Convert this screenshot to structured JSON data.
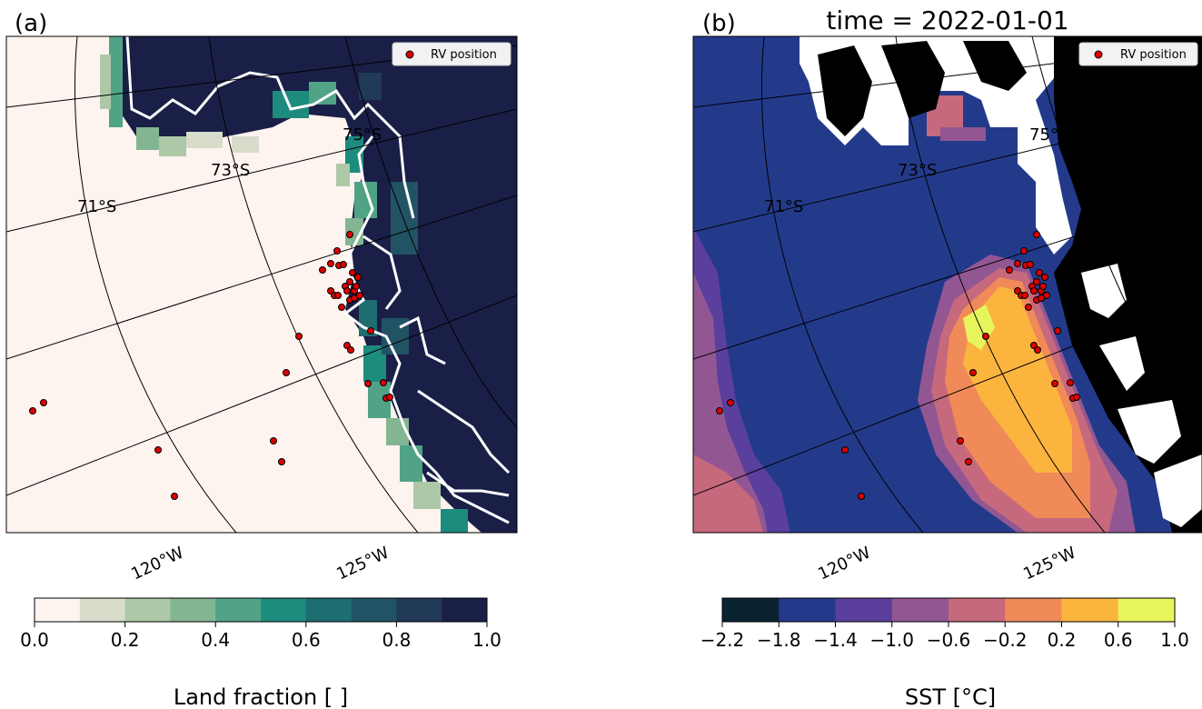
{
  "panels": [
    {
      "label": "(a)",
      "title": "",
      "legend": "RV position",
      "lat_labels": [
        "71°S",
        "73°S",
        "75°S"
      ],
      "lon_labels": [
        "120°W",
        "125°W"
      ],
      "colorbar": {
        "ticks": [
          "0.0",
          "0.2",
          "0.4",
          "0.6",
          "0.8",
          "1.0"
        ],
        "label": "Land fraction [ ]",
        "colors": [
          "#fdf3ef",
          "#d7dccb",
          "#adc8a6",
          "#84b593",
          "#51a386",
          "#1d8b7d",
          "#1d6d71",
          "#225365",
          "#213a58",
          "#1a1f47"
        ]
      }
    },
    {
      "label": "(b)",
      "title": "time = 2022-01-01",
      "legend": "RV position",
      "lat_labels": [
        "71°S",
        "73°S",
        "75°"
      ],
      "lon_labels": [
        "120°W",
        "125°W"
      ],
      "colorbar": {
        "ticks": [
          "−2.2",
          "−1.8",
          "−1.4",
          "−1.0",
          "−0.6",
          "−0.2",
          "0.2",
          "0.6",
          "1.0"
        ],
        "label": "SST [°C]",
        "colors": [
          "#0b2230",
          "#233a8b",
          "#5a3f9c",
          "#925793",
          "#c7697d",
          "#f08a58",
          "#fbb53f",
          "#e7f55c"
        ]
      }
    }
  ],
  "rv_positions_note_colors": {
    "marker": "#dd0000",
    "edge": "#000000"
  }
}
